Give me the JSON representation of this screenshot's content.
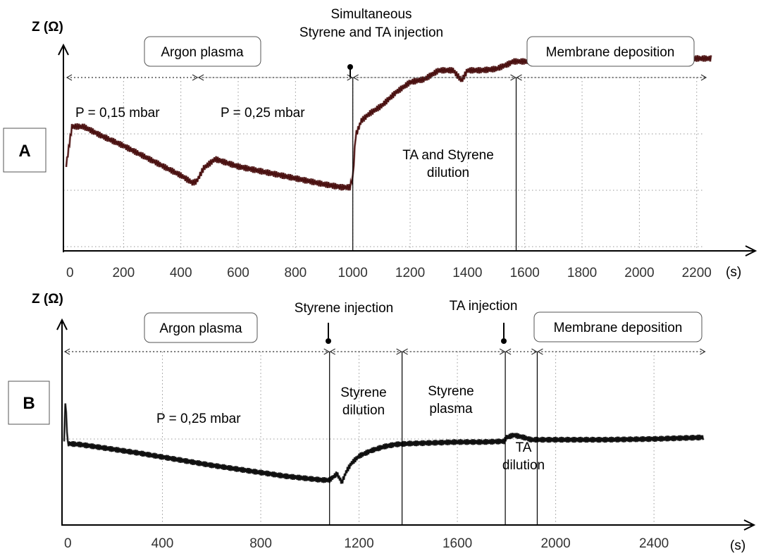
{
  "chart_data": [
    {
      "panel": "A",
      "type": "line",
      "ylabel": "Z (Ω)",
      "xlabel": "(s)",
      "x_ticks": [
        "0",
        "200",
        "400",
        "600",
        "800",
        "1000",
        "1200",
        "1400",
        "1600",
        "1800",
        "2000",
        "2200"
      ],
      "xlim": [
        0,
        2300
      ],
      "y_units": "relative",
      "color": "#4a1010",
      "series": [
        {
          "x": [
            0,
            20,
            60,
            120,
            200,
            300,
            400,
            440,
            455,
            480,
            520,
            600,
            700,
            800,
            900,
            960,
            990,
            1000,
            1010,
            1030,
            1060,
            1100,
            1150,
            1200,
            1250,
            1300,
            1350,
            1380,
            1400,
            1450,
            1500,
            1540,
            1560,
            1600,
            1800,
            2000,
            2200,
            2250
          ],
          "y": [
            0.58,
            0.84,
            0.84,
            0.78,
            0.71,
            0.61,
            0.51,
            0.46,
            0.47,
            0.56,
            0.62,
            0.57,
            0.53,
            0.49,
            0.45,
            0.43,
            0.43,
            0.5,
            0.78,
            0.88,
            0.93,
            0.98,
            1.07,
            1.14,
            1.16,
            1.22,
            1.22,
            1.15,
            1.22,
            1.22,
            1.23,
            1.26,
            1.28,
            1.28,
            1.28,
            1.29,
            1.3,
            1.3
          ]
        }
      ],
      "vlines_at": [
        1000,
        1570
      ],
      "spans": [
        {
          "label": "Argon plasma",
          "from": 0,
          "to": 1000
        },
        {
          "label": "Membrane deposition",
          "from": 1570,
          "to": 2250
        }
      ],
      "annotations": [
        "Simultaneous",
        "Styrene and TA injection",
        "P = 0,15 mbar",
        "P = 0,25 mbar",
        "TA and Styrene",
        "dilution"
      ]
    },
    {
      "panel": "B",
      "type": "line",
      "ylabel": "Z (Ω)",
      "xlabel": "(s)",
      "x_ticks": [
        "0",
        "400",
        "800",
        "1200",
        "1600",
        "2000",
        "2400"
      ],
      "xlim": [
        0,
        2650
      ],
      "y_units": "relative",
      "color": "#111111",
      "series": [
        {
          "x": [
            0,
            5,
            15,
            60,
            150,
            300,
            450,
            600,
            750,
            900,
            1050,
            1080,
            1110,
            1130,
            1150,
            1170,
            1200,
            1250,
            1300,
            1350,
            1400,
            1500,
            1600,
            1700,
            1790,
            1800,
            1830,
            1870,
            1900,
            1930,
            2000,
            2200,
            2400,
            2600
          ],
          "y": [
            1.1,
            1.6,
            1.05,
            1.04,
            1.0,
            0.93,
            0.85,
            0.77,
            0.7,
            0.63,
            0.58,
            0.58,
            0.66,
            0.55,
            0.7,
            0.8,
            0.89,
            0.96,
            1.01,
            1.04,
            1.05,
            1.06,
            1.07,
            1.07,
            1.08,
            1.13,
            1.16,
            1.13,
            1.1,
            1.1,
            1.1,
            1.1,
            1.11,
            1.13
          ]
        }
      ],
      "vlines_at": [
        1080,
        1375,
        1795,
        1925
      ],
      "spans": [
        {
          "label": "Argon plasma",
          "from": 0,
          "to": 1080
        },
        {
          "label": "Membrane deposition",
          "from": 1925,
          "to": 2650
        }
      ],
      "annotations": [
        "Styrene injection",
        "TA injection",
        "P = 0,25 mbar",
        "Styrene",
        "dilution",
        "Styrene",
        "plasma",
        "TA",
        "dilution"
      ]
    }
  ]
}
